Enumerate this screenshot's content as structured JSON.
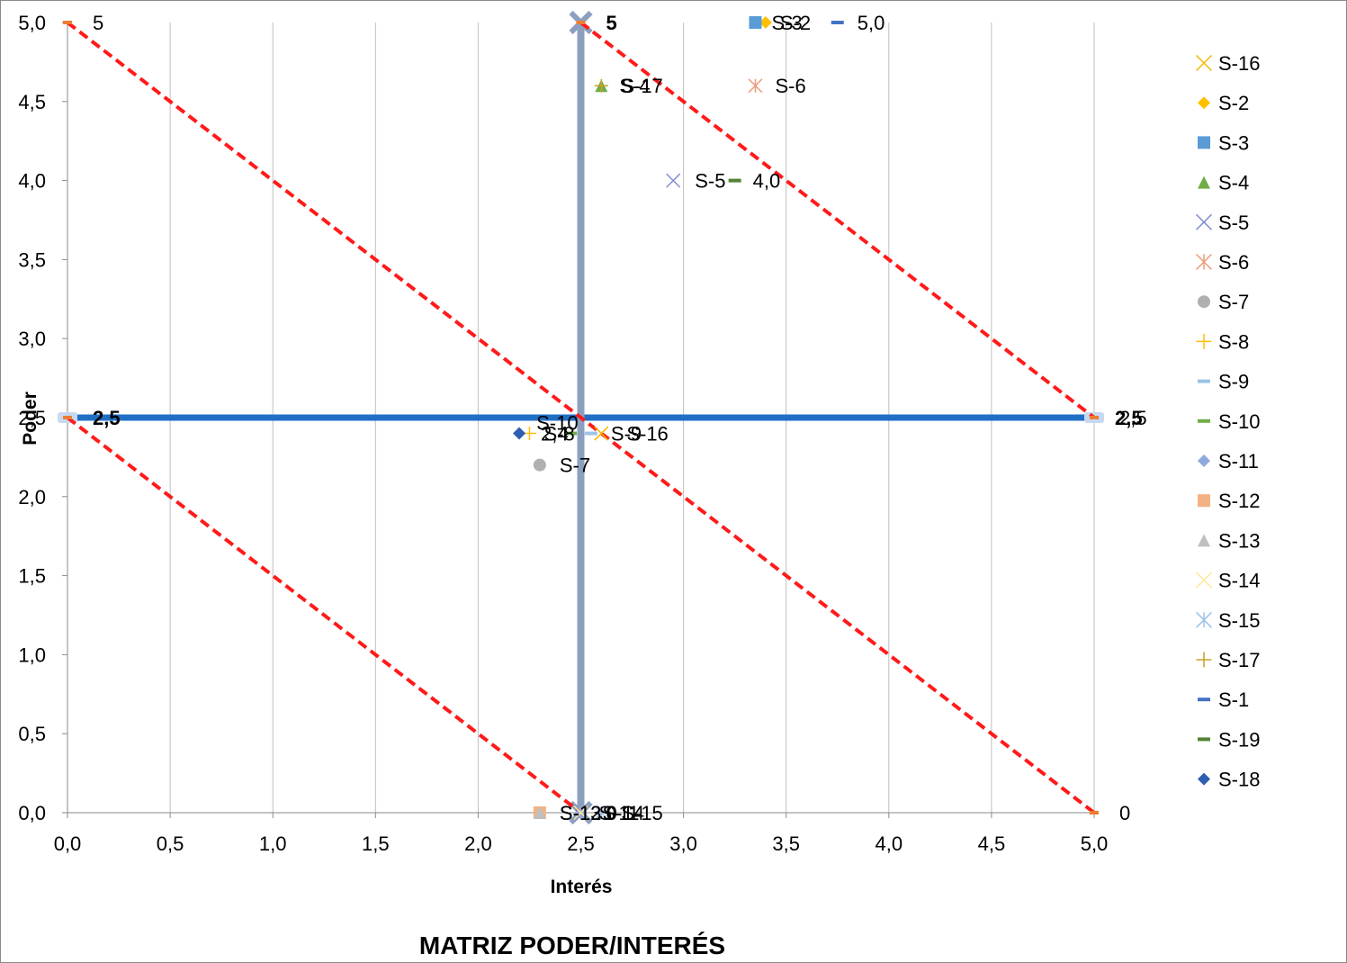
{
  "chart_data": {
    "type": "scatter",
    "title": "MATRIZ PODER/INTERÉS",
    "xlabel": "Interés",
    "ylabel": "Poder",
    "xlim": [
      0,
      5
    ],
    "ylim": [
      0,
      5
    ],
    "x_ticks": [
      "0,0",
      "0,5",
      "1,0",
      "1,5",
      "2,0",
      "2,5",
      "3,0",
      "3,5",
      "4,0",
      "4,5",
      "5,0"
    ],
    "y_ticks": [
      "0,0",
      "0,5",
      "1,0",
      "1,5",
      "2,0",
      "2,5",
      "3,0",
      "3,5",
      "4,0",
      "4,5",
      "5,0"
    ],
    "grid": "vertical",
    "legend_position": "right",
    "reference_lines": [
      {
        "name": "horizontal-divider",
        "points": [
          [
            0,
            2.5
          ],
          [
            5,
            2.5
          ]
        ],
        "color": "#1f6fc6",
        "labels": [
          "2,5",
          "2,5"
        ]
      },
      {
        "name": "vertical-divider",
        "points": [
          [
            2.5,
            0
          ],
          [
            2.5,
            5
          ]
        ],
        "color": "#8c9fbf",
        "labels": [
          "0",
          "5"
        ]
      },
      {
        "name": "diagonal-top",
        "points": [
          [
            0,
            5
          ],
          [
            5,
            0
          ]
        ],
        "color": "#ff1a1a",
        "labels": [
          "5",
          "0"
        ]
      },
      {
        "name": "diagonal-upper",
        "points": [
          [
            2.5,
            5
          ],
          [
            5,
            2.5
          ]
        ],
        "color": "#ff1a1a",
        "labels": [
          "5",
          "2,5"
        ]
      },
      {
        "name": "diagonal-lower",
        "points": [
          [
            0,
            2.5
          ],
          [
            2.5,
            0
          ]
        ],
        "color": "#ff1a1a",
        "labels": [
          "2,5",
          "0"
        ]
      }
    ],
    "series": [
      {
        "name": "S-16",
        "x": 2.6,
        "y": 2.4,
        "marker": "x",
        "color": "#f2b800",
        "label": "S-16"
      },
      {
        "name": "S-2",
        "x": 3.4,
        "y": 5.0,
        "marker": "diamond",
        "color": "#ffc000",
        "label": "S-2"
      },
      {
        "name": "S-3",
        "x": 3.35,
        "y": 5.0,
        "marker": "square",
        "color": "#5b9bd5",
        "label": "S-3"
      },
      {
        "name": "S-4",
        "x": 2.6,
        "y": 4.6,
        "marker": "triangle",
        "color": "#70ad47",
        "label": "S-4"
      },
      {
        "name": "S-5",
        "x": 2.95,
        "y": 4.0,
        "marker": "x",
        "color": "#7f8fcf",
        "label": "S-5"
      },
      {
        "name": "S-6",
        "x": 3.35,
        "y": 4.6,
        "marker": "star",
        "color": "#ed9a7a",
        "label": "S-6"
      },
      {
        "name": "S-7",
        "x": 2.3,
        "y": 2.2,
        "marker": "circle",
        "color": "#b0b0b0",
        "label": "S-7"
      },
      {
        "name": "S-8",
        "x": 2.25,
        "y": 2.4,
        "marker": "plus",
        "color": "#ffc000",
        "label": "S-8"
      },
      {
        "name": "S-9",
        "x": 2.55,
        "y": 2.4,
        "marker": "dash",
        "color": "#9dc3e6",
        "label": "S-9"
      },
      {
        "name": "S-10",
        "x": 2.45,
        "y": 2.4,
        "marker": "dash",
        "color": "#70ad47",
        "label": "S-10"
      },
      {
        "name": "S-11",
        "x": 2.5,
        "y": 0.0,
        "marker": "diamond",
        "color": "#8faadc",
        "label": "S-11"
      },
      {
        "name": "S-12",
        "x": 2.3,
        "y": 0.0,
        "marker": "square",
        "color": "#f4b183",
        "label": "S-12"
      },
      {
        "name": "S-13",
        "x": 2.3,
        "y": 0.0,
        "marker": "triangle",
        "color": "#bfbfbf",
        "label": "S-13"
      },
      {
        "name": "S-14",
        "x": 2.5,
        "y": 0.0,
        "marker": "x",
        "color": "#ffe699",
        "label": "S-14"
      },
      {
        "name": "S-15",
        "x": 2.6,
        "y": 0.0,
        "marker": "star",
        "color": "#9dc3e6",
        "label": "S-15"
      },
      {
        "name": "S-17",
        "x": 2.6,
        "y": 4.6,
        "marker": "plus",
        "color": "#c9a227",
        "label": "S-17"
      },
      {
        "name": "S-1",
        "x": 3.75,
        "y": 5.0,
        "marker": "dash",
        "color": "#4472c4",
        "label": "5,0"
      },
      {
        "name": "S-19",
        "x": 3.25,
        "y": 4.0,
        "marker": "dash",
        "color": "#548235",
        "label": "4,0"
      },
      {
        "name": "S-18",
        "x": 2.2,
        "y": 2.4,
        "marker": "diamond",
        "color": "#2f5fb3",
        "label": "2,4"
      }
    ]
  }
}
